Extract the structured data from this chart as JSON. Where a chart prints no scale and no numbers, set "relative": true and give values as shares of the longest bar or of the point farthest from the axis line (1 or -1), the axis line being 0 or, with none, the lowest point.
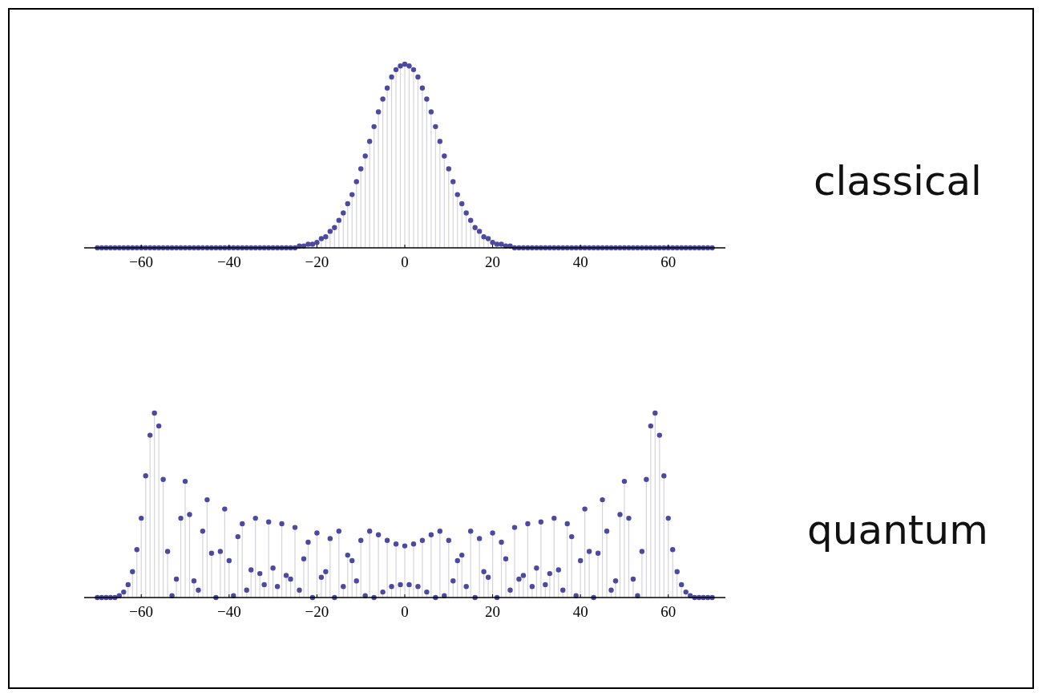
{
  "chart_data": [
    {
      "type": "lollipop",
      "relative": true,
      "xlim": [
        -73,
        73
      ],
      "xticks": [
        -60,
        -40,
        -20,
        0,
        20,
        40,
        60
      ],
      "x": [
        -70,
        -69,
        -68,
        -67,
        -66,
        -65,
        -64,
        -63,
        -62,
        -61,
        -60,
        -59,
        -58,
        -57,
        -56,
        -55,
        -54,
        -53,
        -52,
        -51,
        -50,
        -49,
        -48,
        -47,
        -46,
        -45,
        -44,
        -43,
        -42,
        -41,
        -40,
        -39,
        -38,
        -37,
        -36,
        -35,
        -34,
        -33,
        -32,
        -31,
        -30,
        -29,
        -28,
        -27,
        -26,
        -25,
        -24,
        -23,
        -22,
        -21,
        -20,
        -19,
        -18,
        -17,
        -16,
        -15,
        -14,
        -13,
        -12,
        -11,
        -10,
        -9,
        -8,
        -7,
        -6,
        -5,
        -4,
        -3,
        -2,
        -1,
        0,
        1,
        2,
        3,
        4,
        5,
        6,
        7,
        8,
        9,
        10,
        11,
        12,
        13,
        14,
        15,
        16,
        17,
        18,
        19,
        20,
        21,
        22,
        23,
        24,
        25,
        26,
        27,
        28,
        29,
        30,
        31,
        32,
        33,
        34,
        35,
        36,
        37,
        38,
        39,
        40,
        41,
        42,
        43,
        44,
        45,
        46,
        47,
        48,
        49,
        50,
        51,
        52,
        53,
        54,
        55,
        56,
        57,
        58,
        59,
        60,
        61,
        62,
        63,
        64,
        65,
        66,
        67,
        68,
        69,
        70
      ],
      "series": [
        {
          "name": "classical",
          "color": "#4b4aa0",
          "values": [
            0,
            0,
            0,
            0,
            0,
            0,
            0,
            0,
            0,
            0,
            0,
            0,
            0,
            0,
            0,
            0,
            0,
            0,
            0,
            0,
            0,
            0,
            0,
            0,
            0,
            0,
            0,
            0,
            0,
            0,
            0,
            0,
            0,
            0,
            0,
            0,
            0,
            0,
            0,
            0,
            0,
            0,
            0,
            0,
            0,
            0,
            0.01,
            0.01,
            0.02,
            0.02,
            0.03,
            0.05,
            0.06,
            0.09,
            0.11,
            0.15,
            0.19,
            0.24,
            0.29,
            0.36,
            0.43,
            0.5,
            0.58,
            0.66,
            0.74,
            0.81,
            0.87,
            0.93,
            0.97,
            0.99,
            1,
            0.99,
            0.97,
            0.93,
            0.87,
            0.81,
            0.74,
            0.66,
            0.58,
            0.5,
            0.43,
            0.36,
            0.29,
            0.24,
            0.19,
            0.15,
            0.11,
            0.09,
            0.06,
            0.05,
            0.03,
            0.02,
            0.02,
            0.01,
            0.01,
            0,
            0,
            0,
            0,
            0,
            0,
            0,
            0,
            0,
            0,
            0,
            0,
            0,
            0,
            0,
            0,
            0,
            0,
            0,
            0,
            0,
            0,
            0,
            0,
            0,
            0,
            0,
            0,
            0,
            0,
            0,
            0,
            0,
            0,
            0,
            0,
            0,
            0,
            0,
            0,
            0,
            0,
            0,
            0,
            0,
            0
          ]
        }
      ]
    },
    {
      "type": "lollipop",
      "relative": true,
      "xlim": [
        -73,
        73
      ],
      "xticks": [
        -60,
        -40,
        -20,
        0,
        20,
        40,
        60
      ],
      "x": [
        -70,
        -69,
        -68,
        -67,
        -66,
        -65,
        -64,
        -63,
        -62,
        -61,
        -60,
        -59,
        -58,
        -57,
        -56,
        -55,
        -54,
        -53,
        -52,
        -51,
        -50,
        -49,
        -48,
        -47,
        -46,
        -45,
        -44,
        -43,
        -42,
        -41,
        -40,
        -39,
        -38,
        -37,
        -36,
        -35,
        -34,
        -33,
        -32,
        -31,
        -30,
        -29,
        -28,
        -27,
        -26,
        -25,
        -24,
        -23,
        -22,
        -21,
        -20,
        -19,
        -18,
        -17,
        -16,
        -15,
        -14,
        -13,
        -12,
        -11,
        -10,
        -9,
        -8,
        -7,
        -6,
        -5,
        -4,
        -3,
        -2,
        -1,
        0,
        1,
        2,
        3,
        4,
        5,
        6,
        7,
        8,
        9,
        10,
        11,
        12,
        13,
        14,
        15,
        16,
        17,
        18,
        19,
        20,
        21,
        22,
        23,
        24,
        25,
        26,
        27,
        28,
        29,
        30,
        31,
        32,
        33,
        34,
        35,
        36,
        37,
        38,
        39,
        40,
        41,
        42,
        43,
        44,
        45,
        46,
        47,
        48,
        49,
        50,
        51,
        52,
        53,
        54,
        55,
        56,
        57,
        58,
        59,
        60,
        61,
        62,
        63,
        64,
        65,
        66,
        67,
        68,
        69,
        70
      ],
      "series": [
        {
          "name": "quantum",
          "color": "#4b4aa0",
          "values": [
            0,
            0,
            0,
            0,
            0,
            0.01,
            0.03,
            0.07,
            0.14,
            0.26,
            0.43,
            0.66,
            0.88,
            1,
            0.93,
            0.64,
            0.25,
            0.01,
            0.1,
            0.43,
            0.63,
            0.45,
            0.09,
            0.04,
            0.36,
            0.53,
            0.24,
            0,
            0.25,
            0.48,
            0.2,
            0.01,
            0.33,
            0.4,
            0.04,
            0.15,
            0.43,
            0.13,
            0.07,
            0.41,
            0.16,
            0.06,
            0.4,
            0.12,
            0.1,
            0.38,
            0.04,
            0.21,
            0.3,
            0,
            0.35,
            0.11,
            0.14,
            0.32,
            0,
            0.36,
            0.06,
            0.23,
            0.2,
            0.09,
            0.31,
            0.01,
            0.36,
            0,
            0.34,
            0.03,
            0.31,
            0.06,
            0.29,
            0.07,
            0.28,
            0.07,
            0.29,
            0.06,
            0.31,
            0.03,
            0.34,
            0,
            0.36,
            0.01,
            0.31,
            0.09,
            0.2,
            0.23,
            0.06,
            0.36,
            0,
            0.32,
            0.14,
            0.11,
            0.35,
            0,
            0.3,
            0.21,
            0.04,
            0.38,
            0.1,
            0.12,
            0.4,
            0.06,
            0.16,
            0.41,
            0.07,
            0.13,
            0.43,
            0.15,
            0.04,
            0.4,
            0.33,
            0.01,
            0.2,
            0.48,
            0.25,
            0,
            0.24,
            0.53,
            0.36,
            0.04,
            0.09,
            0.45,
            0.63,
            0.43,
            0.1,
            0.01,
            0.25,
            0.64,
            0.93,
            1,
            0.88,
            0.66,
            0.43,
            0.26,
            0.14,
            0.07,
            0.03,
            0.01,
            0,
            0,
            0,
            0,
            0
          ]
        }
      ]
    }
  ]
}
